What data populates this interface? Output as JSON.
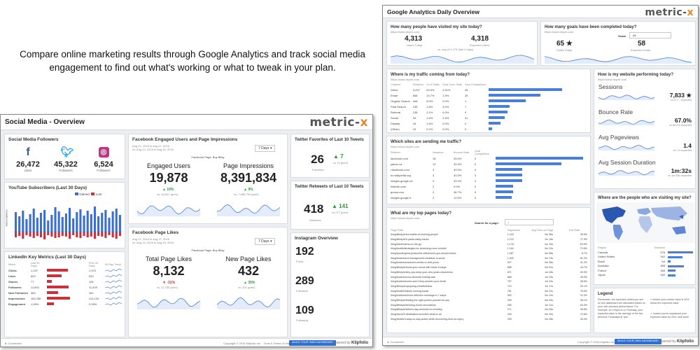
{
  "caption": "Compare online marketing results through Google Analytics and track social media engagement to find out what's working or what to tweak in your plan.",
  "social": {
    "title": "Social Media - Overview",
    "logo_main": "metric-",
    "logo_x": "x",
    "followers": {
      "title": "Social Media Followers",
      "items": [
        {
          "icon": "f",
          "value": "26,472",
          "label": "Likes",
          "color": "#3b5998"
        },
        {
          "icon": "t",
          "value": "45,322",
          "label": "Followers",
          "color": "#1da1f2"
        },
        {
          "icon": "◎",
          "value": "6,524",
          "label": "Followers",
          "color": "#c13584"
        }
      ]
    },
    "youtube": {
      "title": "YouTube Subscribers (Last 30 Days)",
      "ylabel": "Subscriptions",
      "legend": [
        "Gained",
        "Lost"
      ],
      "gained": [
        28,
        22,
        30,
        18,
        25,
        33,
        20,
        27,
        31,
        16,
        24,
        35,
        29,
        21,
        26,
        34,
        19,
        28,
        32,
        23,
        30,
        25,
        36,
        22,
        27,
        31,
        20,
        29,
        33,
        24
      ],
      "lost": [
        8,
        6,
        10,
        5,
        7,
        9,
        6,
        8,
        11,
        5,
        7,
        9,
        8,
        6,
        7,
        10,
        5,
        8,
        9,
        6,
        8,
        7,
        10,
        6,
        7,
        9,
        5,
        8,
        10,
        6
      ],
      "colors": {
        "gained": "#3a6fd0",
        "lost": "#c9313b"
      }
    },
    "linkedin": {
      "title": "LinkedIn Key Metrics (Last 30 Days)",
      "headers": [
        "Metric",
        "Last 30 Days",
        "Prev 30 Days",
        "30 Day Trend"
      ],
      "rows": [
        {
          "metric": "Clicks",
          "last": "1,297",
          "prev": "1,373",
          "bar": 0.85
        },
        {
          "metric": "Likes",
          "last": "602",
          "prev": "533",
          "bar": 0.6
        },
        {
          "metric": "Shares",
          "last": "77",
          "prev": "105",
          "bar": 0.2
        },
        {
          "metric": "Followers",
          "last": "11,802",
          "prev": "11,439",
          "bar": 0.9
        },
        {
          "metric": "New Followers",
          "last": "364",
          "prev": "181",
          "bar": 0.45
        },
        {
          "metric": "Impressions",
          "last": "163,786",
          "prev": "114,133",
          "bar": 0.95
        },
        {
          "metric": "Engagement",
          "last": "1.55%",
          "prev": "2.09%",
          "bar": 0.3
        }
      ]
    },
    "fb_engaged": {
      "title": "Facebook Engaged Users and Page Impressions",
      "date1": "Aug 21, 2016 to Aug 27, 2016",
      "date2": "vs. Aug 14, 2016 to Aug 20, 2016",
      "page": "Facebook Page: Buy Bitsy",
      "dropdown": "7 Days",
      "m1_label": "Engaged Users",
      "m1_value": "19,878",
      "m1_delta": "▲ 19%",
      "m1_prev": "vs. 16,641 (prev)",
      "m2_label": "Page Impressions",
      "m2_value": "8,391,834",
      "m2_delta": "▲ 9%",
      "m2_prev": "vs. 7,686,750 (prev)"
    },
    "fb_likes": {
      "title": "Facebook Page Likes",
      "date1": "Aug 21, 2016 to Aug 27, 2016",
      "date2": "vs. Aug 14, 2016 to Aug 20, 2016",
      "page": "Facebook Page: Buy Bitsy",
      "dropdown": "7 Days",
      "m1_label": "Total Page Likes",
      "m1_value": "8,132",
      "m1_delta": "▼ -31%",
      "m1_prev": "vs. 11,783 (prev)",
      "m2_label": "New Page Likes",
      "m2_value": "432",
      "m2_delta": "▲ 35%",
      "m2_prev": "vs. 321 (prev)"
    },
    "tw_fav": {
      "title": "Twitter Favorites of Last 10 Tweets",
      "value": "26",
      "delta": "▲ 7",
      "prev": "vs 19 (prev)",
      "label": "Favorites"
    },
    "tw_rt": {
      "title": "Twitter Retweets of Last 10 Tweets",
      "value": "418",
      "delta": "▲ 141",
      "prev": "vs 277 (prev)",
      "label": "Retweets"
    },
    "instagram": {
      "title": "Instagram Overview",
      "items": [
        {
          "value": "192",
          "label": "Posts"
        },
        {
          "value": "289",
          "label": "Followers"
        },
        {
          "value": "109",
          "label": "Following"
        }
      ]
    },
    "footer": {
      "connected": "Connected",
      "copyright": "Copyright © 2016 Klipfolio Inc.",
      "terms": "Trust & Terms of Use",
      "button": "BUILD YOUR OWN DASHBOARD",
      "powered": "Powered by",
      "brand": "Klipfolio"
    }
  },
  "ga": {
    "title": "Google Analytics Daily Overview",
    "logo_main": "metric-",
    "logo_x": "x",
    "visited": {
      "title": "How many people have visited my site today?",
      "url": "https://www.dxyrnt.com",
      "v1": "4,313",
      "l1": "Users Today",
      "v2": "4,318",
      "l2": "Expected Users",
      "note": "vs. avg of 4,175 (last 4 days)"
    },
    "goals": {
      "title": "How many goals have been completed today?",
      "url": "https://www.dxyrnt.com",
      "filter_label": "Goals",
      "filter_value": "All",
      "v1": "65 ★",
      "l1": "Goals Today",
      "v2": "58",
      "l2": "Expected Goals"
    },
    "traffic": {
      "title": "Where is my traffic coming from today?",
      "url": "https://www.dxyrnt.com",
      "headers": [
        "Channel",
        "Sessions",
        "% of Traffic",
        "Goal Conv. Rate",
        "Goal Completions"
      ],
      "rows": [
        {
          "ch": "Direct",
          "s": "3,297",
          "p": "63.9%",
          "r": "2.51%",
          "g": "45",
          "bar": 1.0
        },
        {
          "ch": "Email",
          "s": "808",
          "p": "15.7%",
          "r": "1.5%",
          "g": "33",
          "bar": 0.7
        },
        {
          "ch": "Organic Search",
          "s": "408",
          "p": "8.0%",
          "r": "0.0%",
          "g": "1",
          "bar": 0.5
        },
        {
          "ch": "Paid Search",
          "s": "135",
          "p": "2.8%",
          "r": "3.0%",
          "g": "7",
          "bar": 0.28
        },
        {
          "ch": "Referral",
          "s": "138",
          "p": "2.1%",
          "r": "0.0%",
          "g": "0",
          "bar": 0.26
        },
        {
          "ch": "Social",
          "s": "34",
          "p": "1.6%",
          "r": "2.6%",
          "g": "31",
          "bar": 0.22
        },
        {
          "ch": "Display",
          "s": "43",
          "p": "1.6%",
          "r": "0.0%",
          "g": "0",
          "bar": 0.16
        },
        {
          "ch": "(Other)",
          "s": "10",
          "p": "0.2%",
          "r": "0.0%",
          "g": "0",
          "bar": 0.05
        }
      ]
    },
    "referrals": {
      "title": "Which sites are sending me traffic?",
      "url": "https://www.dxyrnt.com",
      "headers": [
        "Referrer",
        "Sessions",
        "Bounce Rate",
        "Goal Completions"
      ],
      "rows": [
        {
          "site": "facebook.com",
          "s": "16",
          "b": "25.0%",
          "g": "0",
          "bar": 1.0
        },
        {
          "site": "yahoo.ca",
          "s": "12",
          "b": "33.3%",
          "g": "0",
          "bar": 0.75
        },
        {
          "site": "l.facebook.com",
          "s": "3",
          "b": "33.3%",
          "g": "0",
          "bar": 0.3
        },
        {
          "site": "en.wikipedia.org",
          "s": "3",
          "b": "33.3%",
          "g": "0",
          "bar": 0.3
        },
        {
          "site": "images.google.ca",
          "s": "3",
          "b": "33.3%",
          "g": "0",
          "bar": 0.3
        },
        {
          "site": "linkedin.com",
          "s": "2",
          "b": "0.0%",
          "g": "0",
          "bar": 0.2
        },
        {
          "site": "quora.com",
          "s": "2",
          "b": "48.7%",
          "g": "0",
          "bar": 0.2
        },
        {
          "site": "images.google.fr",
          "s": "2",
          "b": "12.5%",
          "g": "0",
          "bar": 0.18
        }
      ]
    },
    "pages": {
      "title": "What are my top pages today?",
      "url": "https://www.dxyrnt.com",
      "search_label": "Search for a page:",
      "search_value": "/",
      "headers": [
        "Page Path",
        "Pageviews",
        "Avg Time on Page",
        "Exit Rate"
      ],
      "rows": [
        {
          "p": "/blog/lifestyle/fun-habits-of-morning-people",
          "v": "1,433",
          "t": "0m 55s",
          "e": "38.6%"
        },
        {
          "p": "/blog/lifestyle/5-pasta-sticky-hacks",
          "v": "1,122",
          "t": "2m 16s",
          "e": "71.9%"
        },
        {
          "p": "/blog/travel/carbs-on-the-go",
          "v": "1,178",
          "t": "2m 15s",
          "e": "63.9%"
        },
        {
          "p": "/blog/health/strategies-for-becoming-more-mindful",
          "v": "1,164",
          "t": "0m 31s",
          "e": "70.8%"
        },
        {
          "p": "/blog/sports/great-productive-influencers-you-should-follow",
          "v": "1,067",
          "t": "0m 58s",
          "e": "8.7%"
        },
        {
          "p": "/blog/business/4-management-mistakes-to-avoid",
          "v": "1,000",
          "t": "4m 23s",
          "e": "61.2%"
        },
        {
          "p": "/blog/business/autumn-weeks-to-visit-yours",
          "v": "927",
          "t": "0m 38s",
          "e": "41.2%"
        },
        {
          "p": "/blog/lifestyle/boost-your-mood-with-these-5-steps",
          "v": "885",
          "t": "0m 51s",
          "e": "44.7%"
        },
        {
          "p": "/blog/lifestyle/why-you-keep-your-new-years-resolutions",
          "v": "871",
          "t": "1m 28s",
          "e": "53.9%"
        },
        {
          "p": "/blog/business/our-favourite-holiday-ads",
          "v": "866",
          "t": "1m 19s",
          "e": "49.9%"
        },
        {
          "p": "/blog/business/who-won't-they-answer-your-email",
          "v": "797",
          "t": "1m 23s",
          "e": "38.6%"
        },
        {
          "p": "/blog/lifestyle/upcycling-metalfurbless",
          "v": "710",
          "t": "1m 17s",
          "e": "20.1%"
        },
        {
          "p": "/blog/health/holistic-running-hacks",
          "v": "781",
          "t": "0m 31s",
          "e": "78.5%"
        },
        {
          "p": "/blog/business/more-effective-meetings-in-7-steps",
          "v": "302",
          "t": "2m 10s",
          "e": "21.0%"
        },
        {
          "p": "/blog/lifestyle/finding-the-right-protein-powder-for-you",
          "v": "299",
          "t": "0m 25s",
          "e": "36.1%"
        },
        {
          "p": "/blog/lifestyle/trending-home-renovations",
          "v": "280",
          "t": "1m 21s",
          "e": "54.3%"
        },
        {
          "p": "/blog/lifestyle/fathers-day-reminder-to-trending",
          "v": "271",
          "t": "2m 06s",
          "e": "38.8%"
        },
        {
          "p": "/blog/travel/4-destination-incentive-what-to-do",
          "v": "229",
          "t": "0m 40s",
          "e": "70.6%"
        },
        {
          "p": "/blog/health/3-ways-to-stay-active-while-recovering-from-an-injury",
          "v": "205",
          "t": "0m 28s",
          "e": "40.0%"
        }
      ]
    },
    "performance": {
      "title": "How is my website performing today?",
      "url": "https://www.dxyrnt.com",
      "metrics": [
        {
          "label": "Sessions",
          "value": "7,833 ★",
          "sub": "vs 6,7... expected"
        },
        {
          "label": "Bounce Rate",
          "value": "67.0%",
          "sub": "vs 65.0% expected"
        },
        {
          "label": "Avg Pageviews",
          "value": "1.4",
          "sub": "vs 1.5 expected"
        },
        {
          "label": "Avg Session Duration",
          "value": "1m:32s",
          "sub": "vs 1m:35s expected"
        }
      ]
    },
    "geo": {
      "title": "Where are the people who are visiting my site?",
      "headers": [
        "Region",
        "Sessions"
      ],
      "rows": [
        {
          "r": "Canada",
          "s": "576"
        },
        {
          "r": "United States",
          "s": "342"
        },
        {
          "r": "Brazil",
          "s": "64"
        },
        {
          "r": "Australia",
          "s": "368"
        },
        {
          "r": "France",
          "s": "168"
        },
        {
          "r": "Japan",
          "s": "180"
        }
      ]
    },
    "legend": {
      "title": "Legend",
      "text": "Remember, the expected values you see on this dashboard are calculated based on your own previous performance. For example, at 1:00pm on a Thursday, your expected value is the average of the two previous Thursdays at 1pm.",
      "items": [
        {
          "text": "means your current value is 20% below the expected value",
          "color": "#e8862a"
        },
        {
          "text": "means you've surpassed your expected value by 20%, well done!",
          "color": "#e8a92a"
        }
      ]
    },
    "footer": {
      "connected": "Connected",
      "copyright": "Copyright © 2016 Klipfolio Inc.",
      "button": "BUILD YOUR OWN DASHBOARD",
      "powered": "Powered by",
      "brand": "Klipfolio"
    }
  }
}
